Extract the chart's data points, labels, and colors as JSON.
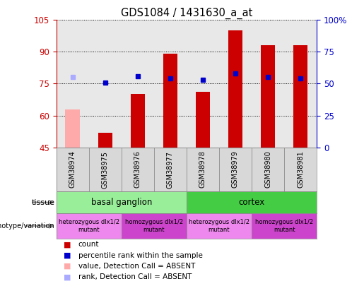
{
  "title": "GDS1084 / 1431630_a_at",
  "samples": [
    "GSM38974",
    "GSM38975",
    "GSM38976",
    "GSM38977",
    "GSM38978",
    "GSM38979",
    "GSM38980",
    "GSM38981"
  ],
  "bar_values": [
    63,
    52,
    70,
    89,
    71,
    100,
    93,
    93
  ],
  "bar_colors": [
    "#ffaaaa",
    "#cc0000",
    "#cc0000",
    "#cc0000",
    "#cc0000",
    "#cc0000",
    "#cc0000",
    "#cc0000"
  ],
  "rank_values": [
    55,
    51,
    56,
    54,
    53,
    58,
    55,
    54
  ],
  "rank_colors": [
    "#aaaaff",
    "#0000cc",
    "#0000cc",
    "#0000cc",
    "#0000cc",
    "#0000cc",
    "#0000cc",
    "#0000cc"
  ],
  "ylim_left": [
    45,
    105
  ],
  "ylim_right": [
    0,
    100
  ],
  "yticks_left": [
    45,
    60,
    75,
    90,
    105
  ],
  "yticks_right": [
    0,
    25,
    50,
    75,
    100
  ],
  "ytick_labels_right": [
    "0",
    "25",
    "50",
    "75",
    "100%"
  ],
  "left_axis_color": "#cc0000",
  "right_axis_color": "#0000cc",
  "tissue_labels": [
    [
      "basal ganglion",
      0,
      4
    ],
    [
      "cortex",
      4,
      8
    ]
  ],
  "tissue_colors": [
    "#99ee99",
    "#44cc44"
  ],
  "genotype_groups": [
    {
      "label": "heterozygous dlx1/2\nmutant",
      "start": 0,
      "end": 2,
      "color": "#ee88ee"
    },
    {
      "label": "homozygous dlx1/2\nmutant",
      "start": 2,
      "end": 4,
      "color": "#cc44cc"
    },
    {
      "label": "heterozygous dlx1/2\nmutant",
      "start": 4,
      "end": 6,
      "color": "#ee88ee"
    },
    {
      "label": "homozygous dlx1/2\nmutant",
      "start": 6,
      "end": 8,
      "color": "#cc44cc"
    }
  ],
  "legend_items": [
    {
      "label": "count",
      "color": "#cc0000"
    },
    {
      "label": "percentile rank within the sample",
      "color": "#0000cc"
    },
    {
      "label": "value, Detection Call = ABSENT",
      "color": "#ffaaaa"
    },
    {
      "label": "rank, Detection Call = ABSENT",
      "color": "#aaaaff"
    }
  ],
  "tissue_row_label": "tissue",
  "genotype_row_label": "genotype/variation",
  "background_color": "#ffffff",
  "plot_bg": "#e8e8e8",
  "bar_width": 0.45
}
